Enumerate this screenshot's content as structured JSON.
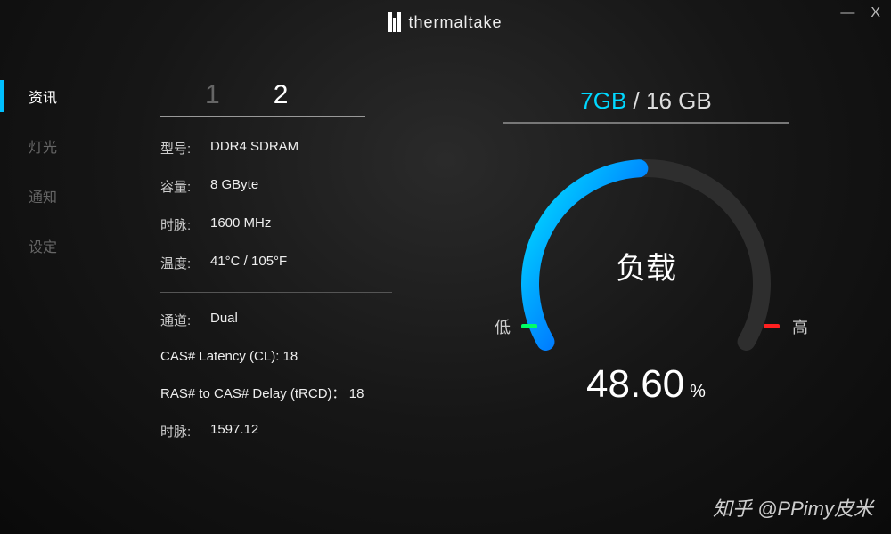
{
  "brand": {
    "name": "thermaltake"
  },
  "window": {
    "minimize": "—",
    "close": "X"
  },
  "nav": {
    "items": [
      {
        "label": "资讯",
        "active": true
      },
      {
        "label": "灯光",
        "active": false
      },
      {
        "label": "通知",
        "active": false
      },
      {
        "label": "设定",
        "active": false
      }
    ]
  },
  "slots": {
    "tabs": [
      "1",
      "2"
    ],
    "selected": 1
  },
  "info": {
    "model_label": "型号:",
    "model": "DDR4 SDRAM",
    "capacity_label": "容量:",
    "capacity": "8 GByte",
    "clock_label": "时脉:",
    "clock": "1600 MHz",
    "temp_label": "温度:",
    "temp": "41°C / 105°F",
    "channel_label": "通道:",
    "channel": "Dual",
    "cas": "CAS# Latency (CL): 18",
    "ras": "RAS# to CAS# Delay (tRCD)： 18",
    "clock2_label": "时脉:",
    "clock2": "1597.12"
  },
  "memory": {
    "used": "7GB",
    "sep": " / ",
    "total": "16 GB"
  },
  "gauge": {
    "title": "负载",
    "low_label": "低",
    "high_label": "高",
    "percent": "48.60",
    "unit": "%",
    "value": 48.6,
    "arc_start_deg": 210,
    "arc_end_deg": -30,
    "track_color": "#2e2e2e",
    "fill_gradient": [
      "#00e5ff",
      "#0080ff",
      "#0050dd"
    ],
    "low_tick_color": "#00ff66",
    "high_tick_color": "#ff2020",
    "radius": 130,
    "stroke_width": 20
  },
  "colors": {
    "accent": "#00bfff",
    "text": "#eeeeee",
    "muted": "#666666",
    "divider": "#555555"
  },
  "watermark": "知乎 @PPimy皮米"
}
